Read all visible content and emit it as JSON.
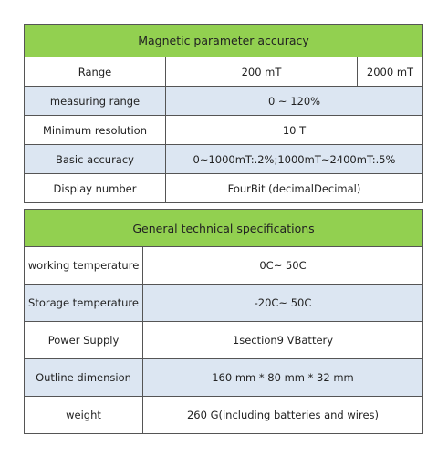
{
  "magnetic": {
    "title": "Magnetic parameter accuracy",
    "range_label": "Range",
    "range_values": [
      "200 mT",
      "2000 mT"
    ],
    "rows": [
      {
        "label": "measuring range",
        "value": "0 ~ 120%"
      },
      {
        "label": "Minimum resolution",
        "value": "10 T"
      },
      {
        "label": "Basic accuracy",
        "value": "0~1000mT:.2%;1000mT~2400mT:.5%"
      },
      {
        "label": "Display number",
        "value": "FourBit (decimalDecimal)"
      }
    ]
  },
  "general": {
    "title": "General technical specifications",
    "rows": [
      {
        "label": "working temperature",
        "value": "0C~ 50C"
      },
      {
        "label": "Storage temperature",
        "value": "-20C~ 50C"
      },
      {
        "label": "Power Supply",
        "value": "1section9 VBattery"
      },
      {
        "label": "Outline dimension",
        "value": "160 mm * 80 mm * 32 mm"
      },
      {
        "label": "weight",
        "value": "260 G(including batteries and wires)"
      }
    ]
  },
  "colors": {
    "header_green": "#92d050",
    "row_blue": "#dce6f2",
    "row_white": "#ffffff",
    "border": "#555555"
  }
}
